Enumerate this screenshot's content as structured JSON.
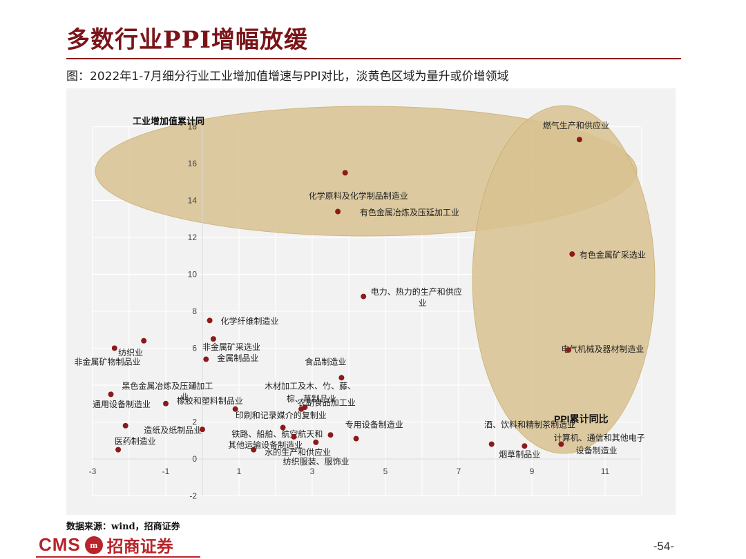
{
  "page": {
    "title": "多数行业PPI增幅放缓",
    "subtitle": "图：2022年1-7月细分行业工业增加值增速与PPI对比，淡黄色区域为量升或价增领域",
    "source": "数据来源：wind，招商证券",
    "logo_text": "CMS",
    "logo_mark": "m",
    "logo_cn": "招商证券",
    "page_number": "-54-"
  },
  "colors": {
    "point": "#8b1a1a",
    "highlight": "#d9c391",
    "grid": "#ffffff",
    "plot_bg": "#f2f2f2",
    "brand": "#b8242a"
  },
  "chart_data": {
    "type": "scatter",
    "title": "",
    "xlabel": "PPI累计同比",
    "ylabel": "工业增加值累计同",
    "xlim": [
      -3,
      12
    ],
    "ylim": [
      -2,
      18
    ],
    "xticks": [
      "-3",
      "-1",
      "1",
      "3",
      "5",
      "7",
      "9",
      "11"
    ],
    "yticks": [
      "-2",
      "0",
      "2",
      "4",
      "6",
      "8",
      "10",
      "12",
      "14",
      "16",
      "18"
    ],
    "grid": true,
    "highlight_regions": [
      "horizontal ellipse around y≈15 (volume up)",
      "vertical ellipse around x≈9.5 (price up)"
    ],
    "points": [
      {
        "label": "燃气生产和供应业",
        "x": 10.3,
        "y": 17.3
      },
      {
        "label": "化学原料及化学制品制造业",
        "x": 3.9,
        "y": 15.5
      },
      {
        "label": "有色金属冶炼及压延加工业",
        "x": 3.7,
        "y": 13.4
      },
      {
        "label": "有色金属矿采选业",
        "x": 10.1,
        "y": 11.1
      },
      {
        "label": "电力、热力的生产和供应业",
        "x": 4.4,
        "y": 8.8
      },
      {
        "label": "化学纤维制造业",
        "x": 0.2,
        "y": 7.5
      },
      {
        "label": "纺织业",
        "x": -1.6,
        "y": 6.4
      },
      {
        "label": "非金属矿物制品业",
        "x": -2.4,
        "y": 6.0
      },
      {
        "label": "非金属矿采选业",
        "x": 0.3,
        "y": 6.5
      },
      {
        "label": "金属制品业",
        "x": 0.1,
        "y": 5.4
      },
      {
        "label": "食品制造业",
        "x": 3.8,
        "y": 4.4
      },
      {
        "label": "电气机械及器材制造业",
        "x": 10.0,
        "y": 5.9
      },
      {
        "label": "黑色金属冶炼及压延加工业",
        "x": -2.5,
        "y": 3.5
      },
      {
        "label": "通用设备制造业",
        "x": -1.0,
        "y": 3.0
      },
      {
        "label": "橡胶和塑料制品业",
        "x": 0.9,
        "y": 2.7
      },
      {
        "label": "木材加工及木、竹、藤、棕、草制品业",
        "x": 2.8,
        "y": 2.8
      },
      {
        "label": "农副食品加工业",
        "x": 2.7,
        "y": 2.7
      },
      {
        "label": "印刷和记录媒介的复制业",
        "x": 2.2,
        "y": 1.7
      },
      {
        "label": "造纸及纸制品业",
        "x": -2.1,
        "y": 1.8
      },
      {
        "label": "医药制造业",
        "x": -2.3,
        "y": 0.5
      },
      {
        "label": "铁路、船舶、航空航天和其他运输设备制造业",
        "x": 3.5,
        "y": 1.3
      },
      {
        "label": "专用设备制造业",
        "x": 4.2,
        "y": 1.1
      },
      {
        "label": "水的生产和供应业",
        "x": 3.1,
        "y": 0.9
      },
      {
        "label": "纺织服装、服饰业",
        "x": 2.5,
        "y": 1.2
      },
      {
        "label": "其他",
        "x": 0.0,
        "y": 1.6
      },
      {
        "label": "其他运输设备",
        "x": 1.4,
        "y": 0.5
      },
      {
        "label": "酒、饮料和精制茶制造业",
        "x": 8.8,
        "y": 0.7
      },
      {
        "label": "烟草制品业",
        "x": 7.9,
        "y": 0.8
      },
      {
        "label": "计算机、通信和其他电子设备制造业",
        "x": 9.8,
        "y": 0.8
      }
    ],
    "annotations": [
      {
        "text": "燃气生产和供应业",
        "x": 9.3,
        "y": 17.9
      },
      {
        "text": "化学原料及化学制品制造业",
        "x": 2.9,
        "y": 14.1
      },
      {
        "text": "有色金属冶炼及压延加工业",
        "x": 4.3,
        "y": 13.2
      },
      {
        "text": "有色金属矿采选业",
        "x": 10.3,
        "y": 10.9
      },
      {
        "text": "电力、热力的生产和供应",
        "x": 4.6,
        "y": 8.9
      },
      {
        "text": "业",
        "x": 5.9,
        "y": 8.3
      },
      {
        "text": "化学纤维制造业",
        "x": 0.5,
        "y": 7.3
      },
      {
        "text": "纺织业",
        "x": -2.3,
        "y": 5.6
      },
      {
        "text": "非金属矿物制品业",
        "x": -3.5,
        "y": 5.1
      },
      {
        "text": "非金属矿采选业",
        "x": 0.0,
        "y": 5.9
      },
      {
        "text": "金属制品业",
        "x": 0.4,
        "y": 5.3
      },
      {
        "text": "食品制造业",
        "x": 2.8,
        "y": 5.1
      },
      {
        "text": "电气机械及器材制造业",
        "x": 9.8,
        "y": 5.8
      },
      {
        "text": "黑色金属冶炼及压延加工",
        "x": -2.2,
        "y": 3.8
      },
      {
        "text": "业",
        "x": -0.6,
        "y": 3.2
      },
      {
        "text": "通用设备制造业",
        "x": -3.0,
        "y": 2.8
      },
      {
        "text": "橡胶和塑料制品业",
        "x": -0.7,
        "y": 3.0
      },
      {
        "text": "木材加工及木、竹、藤、",
        "x": 1.7,
        "y": 3.8
      },
      {
        "text": "棕、草制品业",
        "x": 2.3,
        "y": 3.1
      },
      {
        "text": "农副食品加工业",
        "x": 2.6,
        "y": 2.9
      },
      {
        "text": "印刷和记录媒介的复制业",
        "x": 0.9,
        "y": 2.2
      },
      {
        "text": "造纸及纸制品业",
        "x": -1.6,
        "y": 1.4
      },
      {
        "text": "医药制造业",
        "x": -2.4,
        "y": 0.8
      },
      {
        "text": "铁路、船舶、航空航天和",
        "x": 0.8,
        "y": 1.2
      },
      {
        "text": "其他运输设备制造业",
        "x": 0.7,
        "y": 0.6
      },
      {
        "text": "专用设备制造业",
        "x": 3.9,
        "y": 1.7
      },
      {
        "text": "水的生产和供应业",
        "x": 1.7,
        "y": 0.2
      },
      {
        "text": "纺织服装、服饰业",
        "x": 2.2,
        "y": -0.3
      },
      {
        "text": "酒、饮料和精制茶制造业",
        "x": 7.7,
        "y": 1.7
      },
      {
        "text": "烟草制品业",
        "x": 8.1,
        "y": 0.1
      },
      {
        "text": "计算机、通信和其他电子",
        "x": 9.6,
        "y": 1.0
      },
      {
        "text": "设备制造业",
        "x": 10.2,
        "y": 0.3
      }
    ]
  }
}
